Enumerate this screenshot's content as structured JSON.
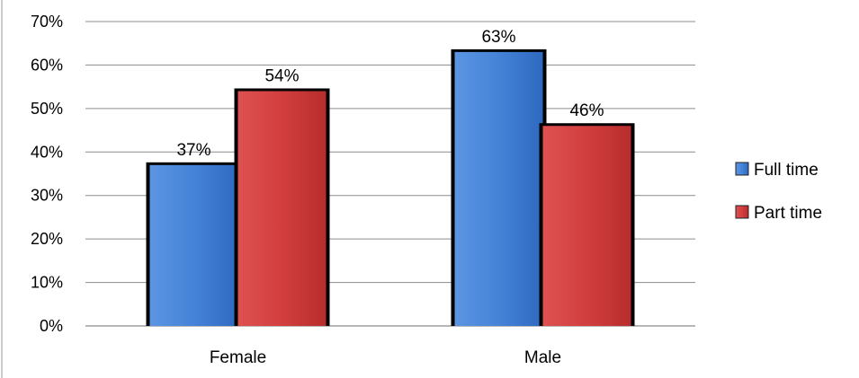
{
  "chart_data": {
    "type": "bar",
    "categories": [
      "Female",
      "Male"
    ],
    "series": [
      {
        "name": "Full time",
        "values": [
          37,
          63
        ],
        "labels": [
          "37%",
          "63%"
        ],
        "color": "#3f7fd6"
      },
      {
        "name": "Part time",
        "values": [
          54,
          46
        ],
        "labels": [
          "54%",
          "46%"
        ],
        "color": "#cf3a3a"
      }
    ],
    "ylim": [
      0,
      70
    ],
    "yticks": [
      0,
      10,
      20,
      30,
      40,
      50,
      60,
      70
    ],
    "ytick_labels": [
      "0%",
      "10%",
      "20%",
      "30%",
      "40%",
      "50%",
      "60%",
      "70%"
    ],
    "grid": true,
    "legend_position": "right",
    "title": "",
    "xlabel": "",
    "ylabel": ""
  }
}
